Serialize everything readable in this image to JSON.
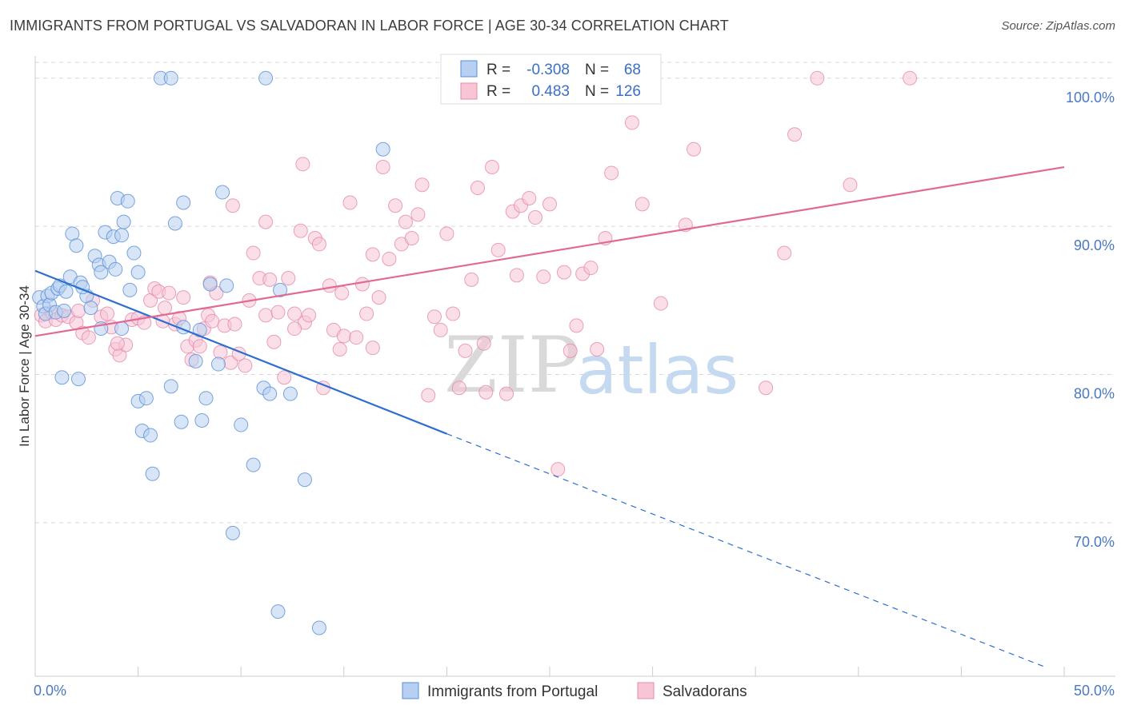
{
  "title": "IMMIGRANTS FROM PORTUGAL VS SALVADORAN IN LABOR FORCE | AGE 30-34 CORRELATION CHART",
  "source": "Source: ZipAtlas.com",
  "watermark": {
    "zip": "ZIP",
    "atlas": "atlas"
  },
  "colors": {
    "blue_fill": "#b7cff0",
    "blue_stroke": "#5a8fd8",
    "blue_line": "#2d6fd0",
    "pink_fill": "#f7c5d6",
    "pink_stroke": "#e58aaa",
    "pink_line": "#e06a94",
    "grid": "#d8d8d8",
    "tick_text": "#4a78c2"
  },
  "legend": {
    "rows": [
      {
        "r_label": "R =",
        "r_value": "-0.308",
        "n_label": "N =",
        "n_value": "68",
        "series": "blue"
      },
      {
        "r_label": "R =",
        "r_value": "0.483",
        "n_label": "N =",
        "n_value": "126",
        "series": "pink"
      }
    ]
  },
  "chart_data": {
    "type": "scatter",
    "title": "IMMIGRANTS FROM PORTUGAL VS SALVADORAN IN LABOR FORCE | AGE 30-34 CORRELATION CHART",
    "xlabel": "",
    "ylabel": "In Labor Force | Age 30-34",
    "xlim": [
      0,
      50
    ],
    "ylim": [
      60.5,
      101.5
    ],
    "x_tick_labels": [
      {
        "value": 0,
        "label": "0.0%"
      },
      {
        "value": 50,
        "label": "50.0%"
      }
    ],
    "y_tick_labels": [
      {
        "value": 100,
        "label": "100.0%"
      },
      {
        "value": 90,
        "label": "90.0%"
      },
      {
        "value": 80,
        "label": "80.0%"
      },
      {
        "value": 70,
        "label": "70.0%"
      }
    ],
    "grid": true,
    "legend_position": "top-center",
    "series": [
      {
        "name": "Immigrants from Portugal",
        "color": "blue",
        "trend": {
          "x0": 0,
          "y0": 87.0,
          "x1": 20,
          "y1": 76.0,
          "dash_to_x": 49,
          "dash_to_y": 60.3
        },
        "points": [
          [
            0.2,
            85.2
          ],
          [
            0.4,
            84.6
          ],
          [
            0.5,
            84.1
          ],
          [
            0.6,
            85.3
          ],
          [
            0.7,
            84.7
          ],
          [
            0.8,
            85.5
          ],
          [
            1.0,
            84.2
          ],
          [
            1.1,
            85.8
          ],
          [
            1.2,
            86.0
          ],
          [
            1.4,
            84.3
          ],
          [
            1.5,
            85.6
          ],
          [
            1.7,
            86.6
          ],
          [
            1.8,
            89.5
          ],
          [
            2.0,
            88.7
          ],
          [
            2.2,
            86.2
          ],
          [
            2.5,
            85.3
          ],
          [
            2.7,
            84.5
          ],
          [
            2.9,
            88.0
          ],
          [
            3.1,
            87.4
          ],
          [
            3.2,
            86.9
          ],
          [
            3.4,
            89.6
          ],
          [
            3.6,
            87.6
          ],
          [
            3.8,
            89.3
          ],
          [
            3.9,
            87.1
          ],
          [
            4.0,
            91.9
          ],
          [
            4.2,
            89.4
          ],
          [
            4.3,
            90.3
          ],
          [
            4.5,
            91.7
          ],
          [
            4.6,
            85.7
          ],
          [
            4.8,
            88.2
          ],
          [
            5.0,
            86.9
          ],
          [
            1.3,
            79.8
          ],
          [
            2.1,
            79.7
          ],
          [
            3.2,
            83.1
          ],
          [
            6.1,
            100.0
          ],
          [
            6.6,
            100.0
          ],
          [
            11.2,
            100.0
          ],
          [
            9.1,
            92.3
          ],
          [
            7.2,
            91.6
          ],
          [
            6.8,
            90.2
          ],
          [
            8.5,
            86.1
          ],
          [
            9.3,
            86.0
          ],
          [
            7.2,
            83.2
          ],
          [
            8.0,
            83.0
          ],
          [
            8.9,
            80.7
          ],
          [
            7.8,
            80.9
          ],
          [
            6.6,
            79.2
          ],
          [
            8.3,
            78.4
          ],
          [
            5.0,
            78.2
          ],
          [
            5.4,
            78.4
          ],
          [
            7.1,
            76.8
          ],
          [
            8.1,
            76.9
          ],
          [
            5.2,
            76.2
          ],
          [
            5.6,
            75.9
          ],
          [
            10.0,
            76.6
          ],
          [
            11.1,
            79.1
          ],
          [
            11.4,
            78.7
          ],
          [
            12.4,
            78.7
          ],
          [
            11.9,
            85.7
          ],
          [
            16.9,
            95.2
          ],
          [
            10.6,
            73.9
          ],
          [
            13.1,
            72.9
          ],
          [
            5.7,
            73.3
          ],
          [
            9.6,
            69.3
          ],
          [
            11.8,
            64.0
          ],
          [
            13.8,
            62.9
          ],
          [
            4.2,
            83.1
          ],
          [
            2.3,
            85.9
          ]
        ]
      },
      {
        "name": "Salvadorans",
        "color": "pink",
        "trend": {
          "x0": 0,
          "y0": 82.6,
          "x1": 50,
          "y1": 94.0
        },
        "points": [
          [
            0.3,
            84.0
          ],
          [
            0.5,
            83.6
          ],
          [
            0.8,
            84.2
          ],
          [
            1.0,
            83.7
          ],
          [
            1.3,
            84.0
          ],
          [
            1.6,
            83.9
          ],
          [
            2.0,
            83.5
          ],
          [
            2.3,
            82.8
          ],
          [
            2.6,
            82.5
          ],
          [
            2.8,
            85.0
          ],
          [
            3.2,
            83.9
          ],
          [
            3.5,
            84.1
          ],
          [
            3.7,
            83.2
          ],
          [
            3.9,
            81.7
          ],
          [
            4.1,
            81.3
          ],
          [
            4.4,
            82.0
          ],
          [
            4.7,
            83.7
          ],
          [
            5.0,
            83.8
          ],
          [
            5.3,
            83.5
          ],
          [
            5.6,
            85.0
          ],
          [
            5.8,
            85.8
          ],
          [
            6.0,
            85.6
          ],
          [
            6.3,
            84.5
          ],
          [
            6.5,
            85.5
          ],
          [
            6.8,
            83.4
          ],
          [
            7.0,
            83.8
          ],
          [
            7.2,
            85.2
          ],
          [
            7.4,
            81.9
          ],
          [
            7.6,
            81.0
          ],
          [
            7.8,
            82.3
          ],
          [
            8.0,
            81.9
          ],
          [
            8.2,
            83.1
          ],
          [
            8.4,
            84.0
          ],
          [
            8.6,
            83.6
          ],
          [
            8.8,
            85.5
          ],
          [
            9.0,
            81.5
          ],
          [
            9.2,
            83.3
          ],
          [
            9.5,
            80.8
          ],
          [
            9.7,
            83.4
          ],
          [
            9.9,
            81.4
          ],
          [
            10.2,
            80.6
          ],
          [
            10.4,
            85.0
          ],
          [
            10.6,
            88.2
          ],
          [
            10.9,
            86.5
          ],
          [
            11.2,
            84.0
          ],
          [
            11.4,
            86.4
          ],
          [
            11.6,
            82.2
          ],
          [
            11.8,
            84.2
          ],
          [
            12.1,
            79.8
          ],
          [
            12.3,
            86.5
          ],
          [
            12.6,
            84.1
          ],
          [
            12.9,
            89.7
          ],
          [
            13.1,
            83.5
          ],
          [
            13.3,
            84.0
          ],
          [
            13.6,
            89.2
          ],
          [
            13.8,
            88.8
          ],
          [
            14.0,
            79.1
          ],
          [
            14.3,
            86.0
          ],
          [
            14.5,
            83.0
          ],
          [
            14.8,
            81.7
          ],
          [
            15.0,
            82.6
          ],
          [
            15.3,
            91.6
          ],
          [
            15.6,
            82.5
          ],
          [
            15.9,
            86.1
          ],
          [
            16.1,
            84.1
          ],
          [
            16.4,
            81.8
          ],
          [
            16.7,
            85.2
          ],
          [
            16.9,
            94.0
          ],
          [
            17.2,
            87.8
          ],
          [
            17.5,
            91.4
          ],
          [
            17.8,
            88.8
          ],
          [
            18.0,
            90.3
          ],
          [
            18.3,
            89.2
          ],
          [
            18.6,
            90.8
          ],
          [
            18.8,
            92.8
          ],
          [
            19.1,
            78.6
          ],
          [
            19.4,
            83.9
          ],
          [
            19.7,
            83.0
          ],
          [
            20.0,
            89.5
          ],
          [
            20.3,
            84.1
          ],
          [
            20.6,
            79.1
          ],
          [
            20.9,
            81.6
          ],
          [
            21.2,
            86.4
          ],
          [
            21.5,
            92.6
          ],
          [
            21.9,
            78.8
          ],
          [
            22.2,
            94.0
          ],
          [
            22.5,
            88.4
          ],
          [
            22.9,
            78.7
          ],
          [
            23.2,
            91.0
          ],
          [
            23.6,
            91.4
          ],
          [
            24.0,
            91.9
          ],
          [
            24.3,
            90.6
          ],
          [
            24.7,
            86.6
          ],
          [
            25.0,
            91.5
          ],
          [
            25.4,
            73.6
          ],
          [
            25.7,
            86.9
          ],
          [
            26.0,
            81.6
          ],
          [
            26.3,
            83.3
          ],
          [
            26.6,
            86.8
          ],
          [
            27.0,
            87.2
          ],
          [
            27.3,
            81.7
          ],
          [
            27.7,
            89.2
          ],
          [
            28.0,
            93.6
          ],
          [
            29.0,
            97.0
          ],
          [
            29.5,
            91.5
          ],
          [
            30.4,
            84.8
          ],
          [
            31.6,
            90.1
          ],
          [
            32.0,
            95.2
          ],
          [
            35.5,
            79.1
          ],
          [
            36.4,
            88.2
          ],
          [
            36.9,
            96.2
          ],
          [
            38.0,
            100.0
          ],
          [
            39.6,
            92.8
          ],
          [
            42.5,
            100.0
          ],
          [
            9.6,
            91.4
          ],
          [
            13.0,
            94.2
          ],
          [
            8.5,
            86.2
          ],
          [
            11.2,
            90.3
          ],
          [
            12.6,
            83.1
          ],
          [
            14.9,
            85.5
          ],
          [
            16.4,
            88.1
          ],
          [
            21.8,
            82.1
          ],
          [
            23.4,
            86.7
          ],
          [
            6.2,
            83.6
          ],
          [
            4.0,
            82.1
          ],
          [
            2.1,
            84.3
          ]
        ]
      }
    ]
  },
  "bottom_legend": [
    {
      "label": "Immigrants from Portugal",
      "series": "blue"
    },
    {
      "label": "Salvadorans",
      "series": "pink"
    }
  ]
}
